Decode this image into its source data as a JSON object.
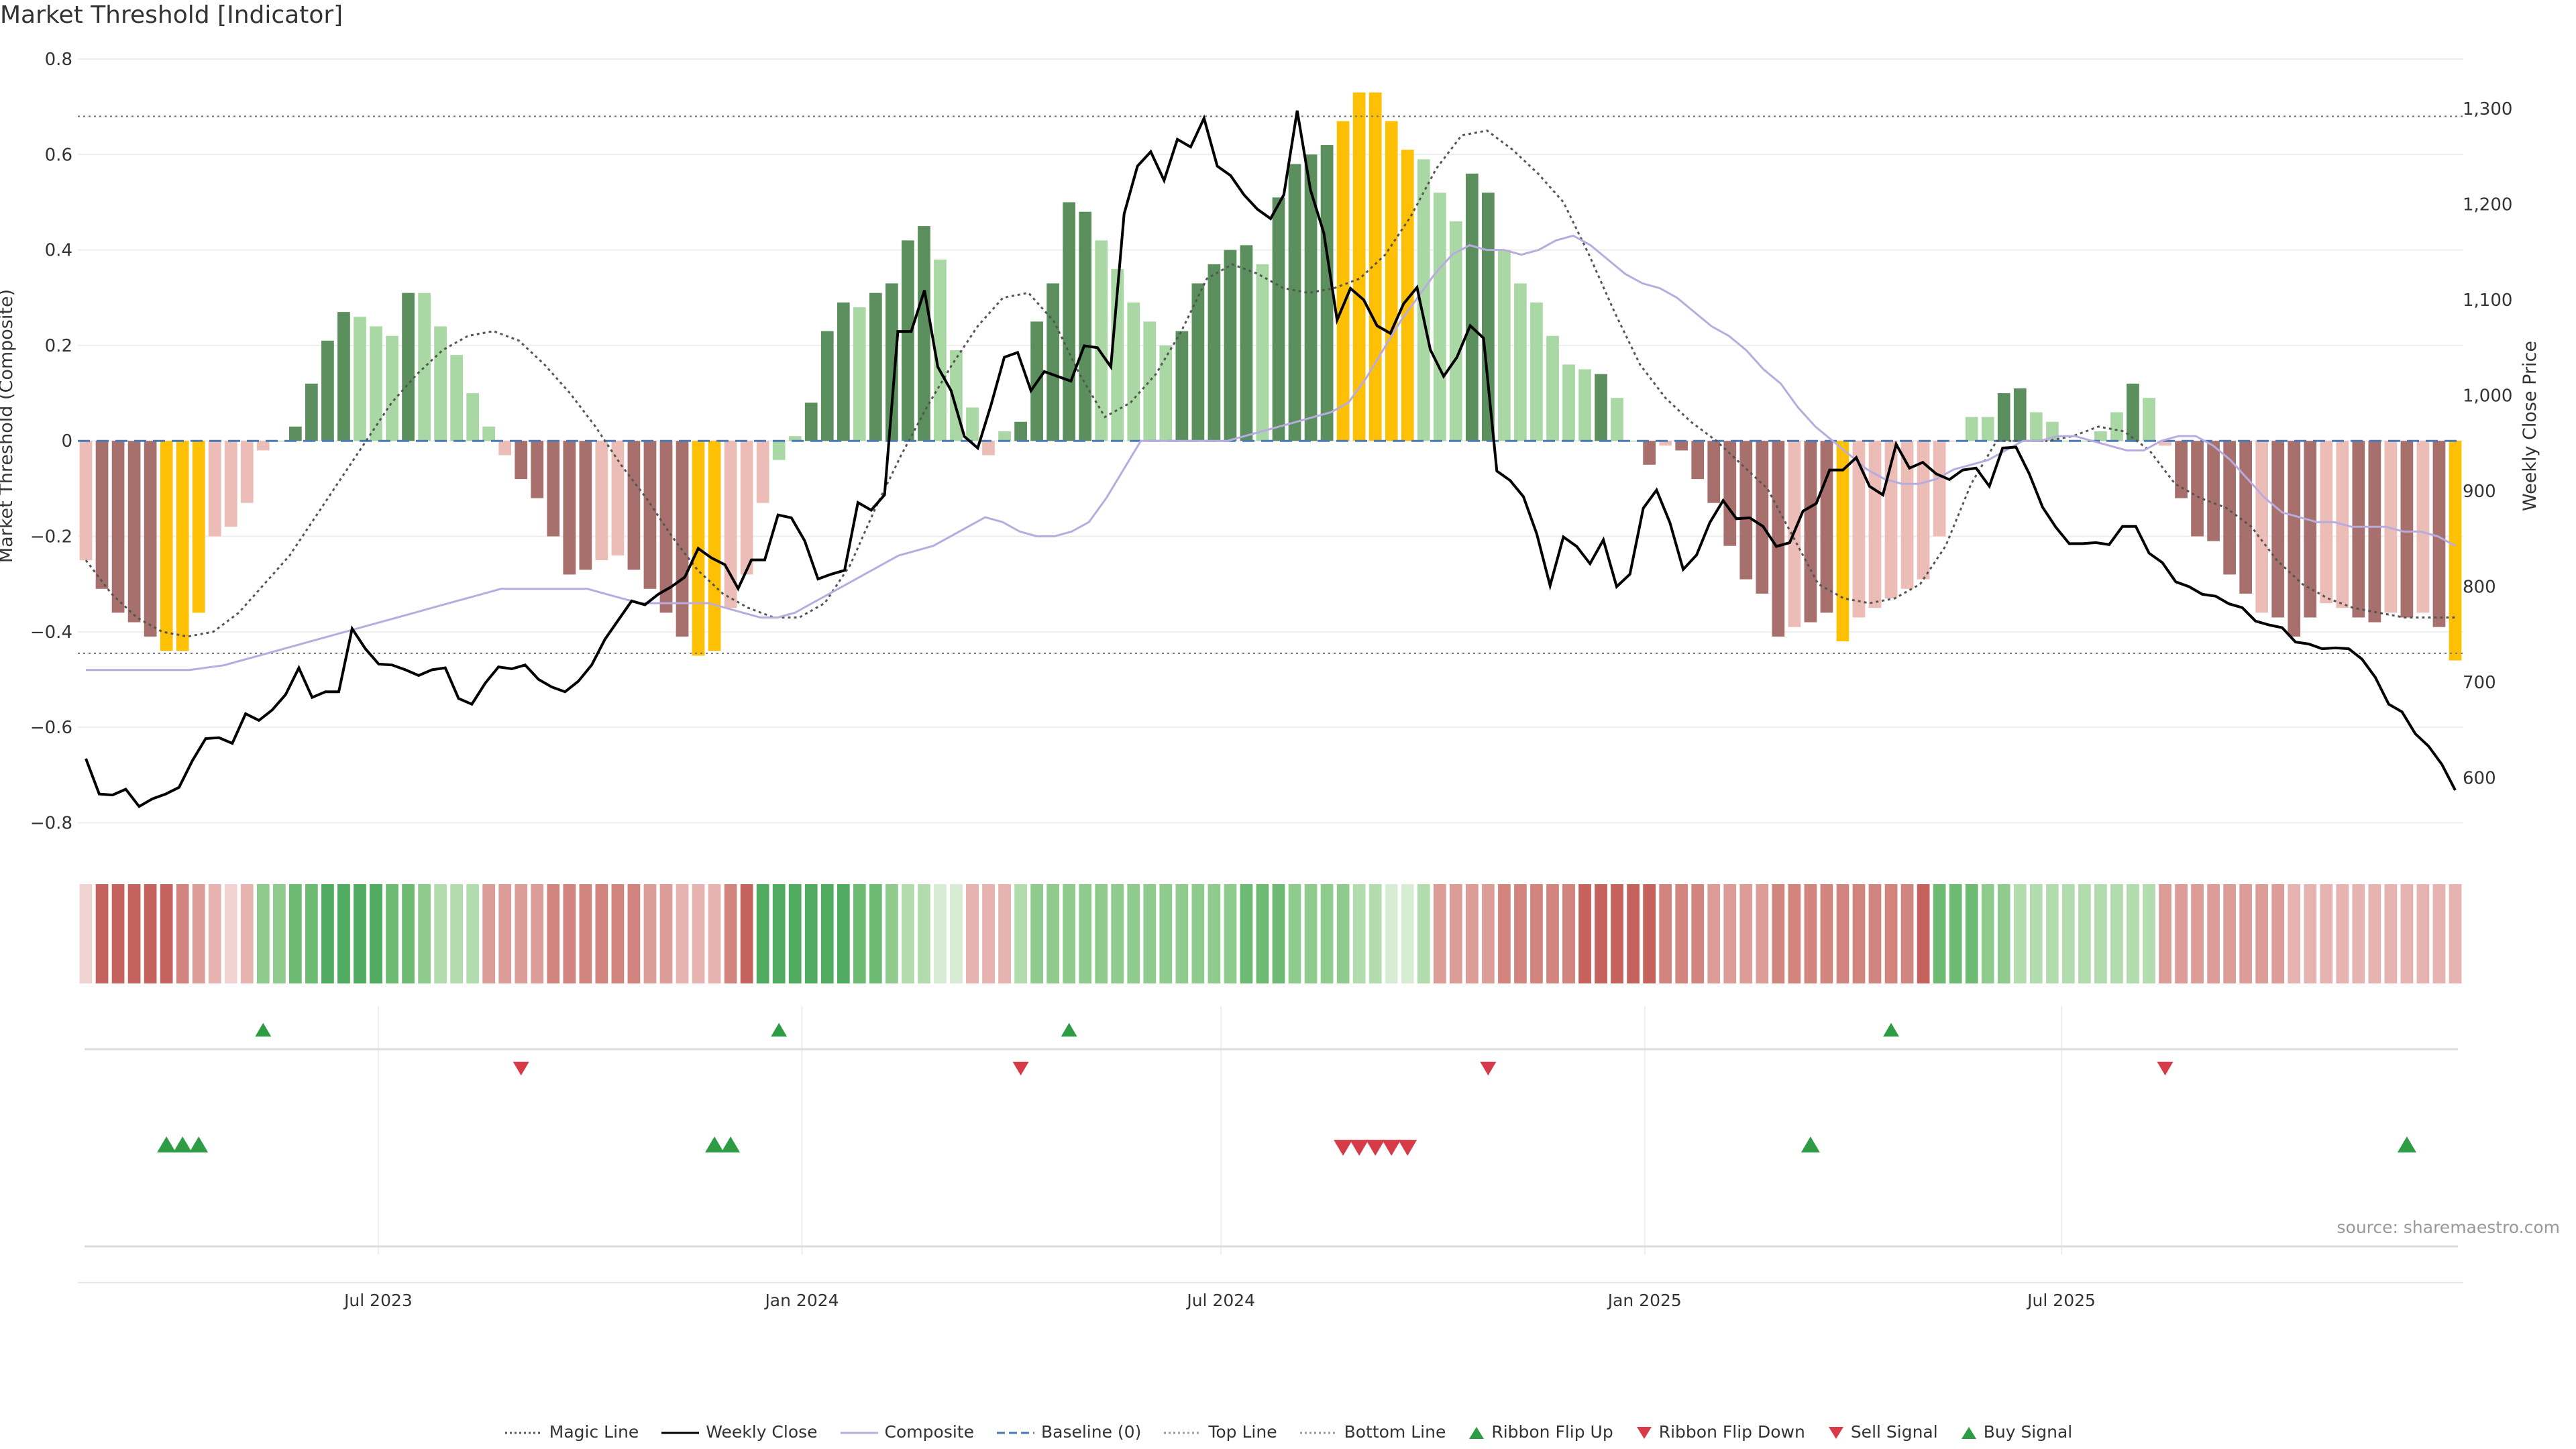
{
  "title": "Market Threshold [Indicator]",
  "source": "source: sharemaestro.com",
  "colors": {
    "strong_up": "#5b8f5d",
    "weak_up": "#aad8a4",
    "strong_down": "#a8706d",
    "weak_down": "#ecbcb6",
    "extreme": "#fec005",
    "weekly_close": "#000000",
    "composite": "#b8acdf",
    "magic": "#555555",
    "baseline": "#4a7ab5",
    "buy": "#2e9b45",
    "sell": "#d63b47",
    "ribbon_up": "#2e9b45",
    "ribbon_down": "#d63b47"
  },
  "legend": [
    {
      "label": "Magic Line",
      "icon": "dotted-line"
    },
    {
      "label": "Weekly Close",
      "icon": "solid-line"
    },
    {
      "label": "Composite",
      "icon": "solid-line"
    },
    {
      "label": "Baseline (0)",
      "icon": "dashed-line"
    },
    {
      "label": "Top Line",
      "icon": "dotted-line"
    },
    {
      "label": "Bottom Line",
      "icon": "dotted-line"
    },
    {
      "label": "Ribbon Flip Up",
      "icon": "triangle-up"
    },
    {
      "label": "Ribbon Flip Down",
      "icon": "triangle-down"
    },
    {
      "label": "Sell Signal",
      "icon": "triangle-down"
    },
    {
      "label": "Buy Signal",
      "icon": "triangle-up"
    }
  ],
  "chart_data": {
    "type": "bar",
    "x_start": "2023-02-24",
    "x_step_days": 7,
    "left_axis": {
      "label": "Market Threshold (Composite)",
      "ylim": [
        -0.85,
        0.8
      ],
      "ticks": [
        0.8,
        0.6,
        0.4,
        0.2,
        0,
        -0.2,
        -0.4,
        -0.6,
        -0.8
      ],
      "tick_labels": [
        "0.8",
        "0.6",
        "0.4",
        "0.2",
        "0",
        "−0.2",
        "−0.4",
        "−0.6",
        "−0.8"
      ]
    },
    "right_axis": {
      "label": "Weekly Close Price",
      "ylim": [
        528,
        1352
      ],
      "ticks": [
        600,
        700,
        800,
        900,
        1000,
        1100,
        1200,
        1300
      ],
      "tick_labels": [
        "600",
        "700",
        "800",
        "900",
        "1,000",
        "1,100",
        "1,200",
        "1,300"
      ]
    },
    "x_ticks": [
      "2023-07-01",
      "2024-01-01",
      "2024-07-01",
      "2025-01-01",
      "2025-07-01"
    ],
    "x_tick_labels": [
      "Jul 2023",
      "Jan 2024",
      "Jul 2024",
      "Jan 2025",
      "Jul 2025"
    ],
    "top_line": 0.68,
    "bottom_line": -0.445,
    "baseline": 0,
    "composite": [
      -0.25,
      -0.31,
      -0.36,
      -0.38,
      -0.41,
      -0.44,
      -0.44,
      -0.36,
      -0.2,
      -0.18,
      -0.13,
      -0.02,
      0.0,
      0.03,
      0.12,
      0.21,
      0.27,
      0.26,
      0.24,
      0.22,
      0.31,
      0.31,
      0.24,
      0.18,
      0.1,
      0.03,
      -0.03,
      -0.08,
      -0.12,
      -0.2,
      -0.28,
      -0.27,
      -0.25,
      -0.24,
      -0.27,
      -0.31,
      -0.36,
      -0.41,
      -0.45,
      -0.44,
      -0.35,
      -0.28,
      -0.13,
      -0.04,
      0.01,
      0.08,
      0.23,
      0.29,
      0.28,
      0.31,
      0.33,
      0.42,
      0.45,
      0.38,
      0.19,
      0.07,
      -0.03,
      0.02,
      0.04,
      0.25,
      0.33,
      0.5,
      0.48,
      0.42,
      0.36,
      0.29,
      0.25,
      0.2,
      0.23,
      0.33,
      0.37,
      0.4,
      0.41,
      0.37,
      0.51,
      0.58,
      0.6,
      0.62,
      0.67,
      0.73,
      0.73,
      0.67,
      0.61,
      0.59,
      0.52,
      0.46,
      0.56,
      0.52,
      0.4,
      0.33,
      0.29,
      0.22,
      0.16,
      0.15,
      0.14,
      0.09,
      0.0,
      -0.05,
      -0.01,
      -0.02,
      -0.08,
      -0.13,
      -0.22,
      -0.29,
      -0.32,
      -0.41,
      -0.39,
      -0.38,
      -0.36,
      -0.42,
      -0.37,
      -0.35,
      -0.33,
      -0.31,
      -0.29,
      -0.2,
      0.0,
      0.05,
      0.05,
      0.1,
      0.11,
      0.06,
      0.04,
      0.0,
      0.0,
      0.02,
      0.06,
      0.12,
      0.09,
      -0.01,
      -0.12,
      -0.2,
      -0.21,
      -0.28,
      -0.32,
      -0.36,
      -0.37,
      -0.41,
      -0.37,
      -0.34,
      -0.35,
      -0.37,
      -0.38,
      -0.36,
      -0.37,
      -0.36,
      -0.39,
      -0.46
    ],
    "bar_colors": [
      "wd",
      "sd",
      "sd",
      "sd",
      "sd",
      "ex",
      "ex",
      "ex",
      "wd",
      "wd",
      "wd",
      "wd",
      "wu",
      "su",
      "su",
      "su",
      "su",
      "wu",
      "wu",
      "wu",
      "su",
      "wu",
      "wu",
      "wu",
      "wu",
      "wu",
      "wd",
      "sd",
      "sd",
      "sd",
      "sd",
      "sd",
      "wd",
      "wd",
      "sd",
      "sd",
      "sd",
      "sd",
      "ex",
      "ex",
      "wd",
      "wd",
      "wd",
      "wu",
      "wu",
      "su",
      "su",
      "su",
      "wu",
      "su",
      "su",
      "su",
      "su",
      "wu",
      "wu",
      "wu",
      "wd",
      "wu",
      "su",
      "su",
      "su",
      "su",
      "su",
      "wu",
      "wu",
      "wu",
      "wu",
      "wu",
      "su",
      "su",
      "su",
      "su",
      "su",
      "wu",
      "su",
      "su",
      "su",
      "su",
      "ex",
      "ex",
      "ex",
      "ex",
      "ex",
      "wu",
      "wu",
      "wu",
      "su",
      "su",
      "wu",
      "wu",
      "wu",
      "wu",
      "wu",
      "wu",
      "su",
      "wu",
      "wu",
      "sd",
      "wd",
      "sd",
      "sd",
      "sd",
      "sd",
      "sd",
      "sd",
      "sd",
      "wd",
      "sd",
      "sd",
      "ex",
      "wd",
      "wd",
      "wd",
      "wd",
      "wd",
      "wd",
      "wd",
      "wu",
      "wu",
      "su",
      "su",
      "wu",
      "wu",
      "wu",
      "wu",
      "wu",
      "wu",
      "su",
      "wu",
      "wd",
      "sd",
      "sd",
      "sd",
      "sd",
      "sd",
      "wd",
      "sd",
      "sd",
      "sd",
      "wd",
      "wd",
      "sd",
      "sd",
      "wd",
      "sd",
      "wd",
      "sd",
      "ex"
    ],
    "weekly_close": [
      620,
      583,
      582,
      588,
      570,
      578,
      583,
      590,
      618,
      641,
      642,
      636,
      667,
      660,
      671,
      687,
      715,
      684,
      690,
      690,
      756,
      735,
      719,
      718,
      713,
      707,
      713,
      715,
      683,
      677,
      699,
      716,
      714,
      718,
      703,
      695,
      690,
      701,
      718,
      745,
      765,
      785,
      781,
      792,
      800,
      810,
      840,
      830,
      823,
      798,
      828,
      828,
      875,
      872,
      848,
      808,
      813,
      817,
      888,
      880,
      896,
      1067,
      1067,
      1110,
      1030,
      1005,
      957,
      945,
      990,
      1040,
      1045,
      1005,
      1025,
      1020,
      1015,
      1052,
      1050,
      1030,
      1190,
      1240,
      1255,
      1225,
      1268,
      1260,
      1290,
      1240,
      1230,
      1210,
      1195,
      1185,
      1210,
      1298,
      1215,
      1170,
      1079,
      1112,
      1100,
      1073,
      1065,
      1096,
      1113,
      1048,
      1020,
      1040,
      1073,
      1060,
      921,
      911,
      894,
      855,
      801,
      852,
      842,
      824,
      849,
      800,
      813,
      882,
      901,
      867,
      818,
      833,
      867,
      890,
      871,
      872,
      863,
      842,
      846,
      879,
      887,
      922,
      922,
      935,
      905,
      896,
      949,
      924,
      930,
      918,
      912,
      922,
      924,
      905,
      945,
      946,
      918,
      883,
      862,
      845,
      845,
      846,
      844,
      863,
      863,
      835,
      825,
      805,
      800,
      792,
      790,
      782,
      778,
      764,
      760,
      757,
      742,
      740,
      735,
      736,
      735,
      724,
      705,
      677,
      669,
      646,
      633,
      614,
      587
    ],
    "composite_line": [
      -0.48,
      -0.48,
      -0.48,
      -0.48,
      -0.48,
      -0.48,
      -0.48,
      -0.475,
      -0.47,
      -0.46,
      -0.45,
      -0.44,
      -0.43,
      -0.42,
      -0.41,
      -0.4,
      -0.39,
      -0.38,
      -0.37,
      -0.36,
      -0.35,
      -0.34,
      -0.33,
      -0.32,
      -0.31,
      -0.31,
      -0.31,
      -0.31,
      -0.31,
      -0.31,
      -0.32,
      -0.33,
      -0.34,
      -0.34,
      -0.34,
      -0.34,
      -0.34,
      -0.35,
      -0.36,
      -0.37,
      -0.37,
      -0.36,
      -0.34,
      -0.32,
      -0.3,
      -0.28,
      -0.26,
      -0.24,
      -0.23,
      -0.22,
      -0.2,
      -0.18,
      -0.16,
      -0.17,
      -0.19,
      -0.2,
      -0.2,
      -0.19,
      -0.17,
      -0.12,
      -0.06,
      0.0,
      0.0,
      0.0,
      0.0,
      0.0,
      0.0,
      0.01,
      0.02,
      0.03,
      0.04,
      0.05,
      0.06,
      0.08,
      0.13,
      0.19,
      0.25,
      0.3,
      0.35,
      0.39,
      0.41,
      0.4,
      0.4,
      0.39,
      0.4,
      0.42,
      0.43,
      0.41,
      0.38,
      0.35,
      0.33,
      0.32,
      0.3,
      0.27,
      0.24,
      0.22,
      0.19,
      0.15,
      0.12,
      0.07,
      0.03,
      0.0,
      -0.03,
      -0.06,
      -0.08,
      -0.09,
      -0.09,
      -0.08,
      -0.06,
      -0.05,
      -0.04,
      -0.02,
      0.0,
      0.0,
      0.01,
      0.01,
      0.0,
      -0.01,
      -0.02,
      -0.02,
      0.0,
      0.01,
      0.01,
      -0.01,
      -0.04,
      -0.08,
      -0.12,
      -0.15,
      -0.16,
      -0.17,
      -0.17,
      -0.18,
      -0.18,
      -0.18,
      -0.19,
      -0.19,
      -0.2,
      -0.22
    ],
    "magic_line": [
      -0.25,
      -0.32,
      -0.37,
      -0.4,
      -0.41,
      -0.4,
      -0.36,
      -0.3,
      -0.24,
      -0.16,
      -0.08,
      0.0,
      0.08,
      0.14,
      0.19,
      0.22,
      0.23,
      0.21,
      0.16,
      0.1,
      0.03,
      -0.05,
      -0.12,
      -0.2,
      -0.27,
      -0.32,
      -0.35,
      -0.37,
      -0.37,
      -0.34,
      -0.26,
      -0.14,
      -0.03,
      0.07,
      0.16,
      0.24,
      0.3,
      0.31,
      0.25,
      0.14,
      0.05,
      0.08,
      0.14,
      0.23,
      0.34,
      0.37,
      0.35,
      0.32,
      0.31,
      0.32,
      0.34,
      0.39,
      0.47,
      0.57,
      0.64,
      0.65,
      0.61,
      0.56,
      0.5,
      0.39,
      0.27,
      0.16,
      0.09,
      0.04,
      0.0,
      -0.05,
      -0.1,
      -0.2,
      -0.3,
      -0.33,
      -0.34,
      -0.33,
      -0.3,
      -0.22,
      -0.09,
      0.0,
      0.0,
      0.0,
      0.01,
      0.03,
      0.02,
      -0.02,
      -0.09,
      -0.12,
      -0.14,
      -0.18,
      -0.25,
      -0.3,
      -0.33,
      -0.35,
      -0.36,
      -0.37,
      -0.37,
      -0.37
    ],
    "ribbon_levels": [
      1,
      5,
      5,
      5,
      5,
      5,
      4,
      3,
      2,
      1,
      2,
      3,
      3,
      4,
      4,
      5,
      5,
      5,
      5,
      5,
      4,
      4,
      3,
      2,
      2,
      2,
      3,
      3,
      3,
      3,
      4,
      4,
      4,
      4,
      4,
      4,
      3,
      3,
      2,
      2,
      2,
      4,
      5,
      5,
      5,
      5,
      5,
      5,
      5,
      4,
      4,
      3,
      2,
      2,
      1,
      1,
      2,
      2,
      2,
      2,
      2,
      3,
      3,
      3,
      3,
      3,
      3,
      3,
      3,
      3,
      3,
      3,
      3,
      3,
      4,
      4,
      4,
      3,
      3,
      3,
      3,
      2,
      2,
      1,
      1,
      2,
      3,
      3,
      3,
      3,
      4,
      4,
      4,
      4,
      4,
      4,
      5,
      5,
      5,
      5,
      5,
      4,
      4,
      4,
      3,
      3,
      3,
      3,
      4,
      4,
      4,
      4,
      4,
      4,
      4,
      4,
      4,
      5,
      4,
      4,
      4,
      3,
      3,
      2,
      2,
      2,
      2,
      2,
      2,
      2,
      2,
      2,
      1,
      3,
      3,
      3,
      3,
      3,
      3,
      3,
      3,
      2,
      2,
      2,
      2,
      2,
      2,
      2,
      2,
      2,
      2,
      2
    ],
    "ribbon_colors": [
      "d",
      "d",
      "d",
      "d",
      "d",
      "d",
      "d",
      "d",
      "d",
      "d",
      "d",
      "u",
      "u",
      "u",
      "u",
      "u",
      "u",
      "u",
      "u",
      "u",
      "u",
      "u",
      "u",
      "u",
      "u",
      "u",
      "d",
      "d",
      "d",
      "d",
      "d",
      "d",
      "d",
      "d",
      "d",
      "d",
      "d",
      "d",
      "d",
      "d",
      "d",
      "d",
      "d",
      "u",
      "u",
      "u",
      "u",
      "u",
      "u",
      "u",
      "u",
      "u",
      "u",
      "u",
      "u",
      "u",
      "d",
      "d",
      "d",
      "d",
      "u",
      "u",
      "u",
      "u",
      "u",
      "u",
      "u",
      "u",
      "u",
      "u",
      "u",
      "u",
      "u",
      "u",
      "u",
      "u",
      "u",
      "u",
      "u",
      "u",
      "u",
      "u",
      "u",
      "u",
      "u",
      "u",
      "d",
      "d",
      "d",
      "d",
      "d",
      "d",
      "d",
      "d",
      "d",
      "d",
      "d",
      "d",
      "d",
      "d",
      "d",
      "d",
      "d",
      "d",
      "d",
      "d",
      "d",
      "d",
      "d",
      "d",
      "d",
      "d",
      "d",
      "d",
      "d",
      "d",
      "d",
      "d",
      "u",
      "u",
      "u",
      "u",
      "u",
      "u",
      "u",
      "u",
      "u",
      "u",
      "u",
      "u",
      "u",
      "u",
      "d",
      "d",
      "d",
      "d",
      "d",
      "d",
      "d",
      "d",
      "d",
      "d",
      "d",
      "d",
      "d",
      "d",
      "d",
      "d",
      "d",
      "d",
      "d",
      "d"
    ],
    "ribbon_flip_up_idx": [
      11,
      43,
      61,
      112
    ],
    "ribbon_flip_down_idx": [
      27,
      58,
      87,
      129
    ],
    "buy_signal_idx": [
      5,
      6,
      7,
      39,
      40,
      107,
      144
    ],
    "sell_signal_idx": [
      78,
      79,
      80,
      81,
      82
    ]
  }
}
